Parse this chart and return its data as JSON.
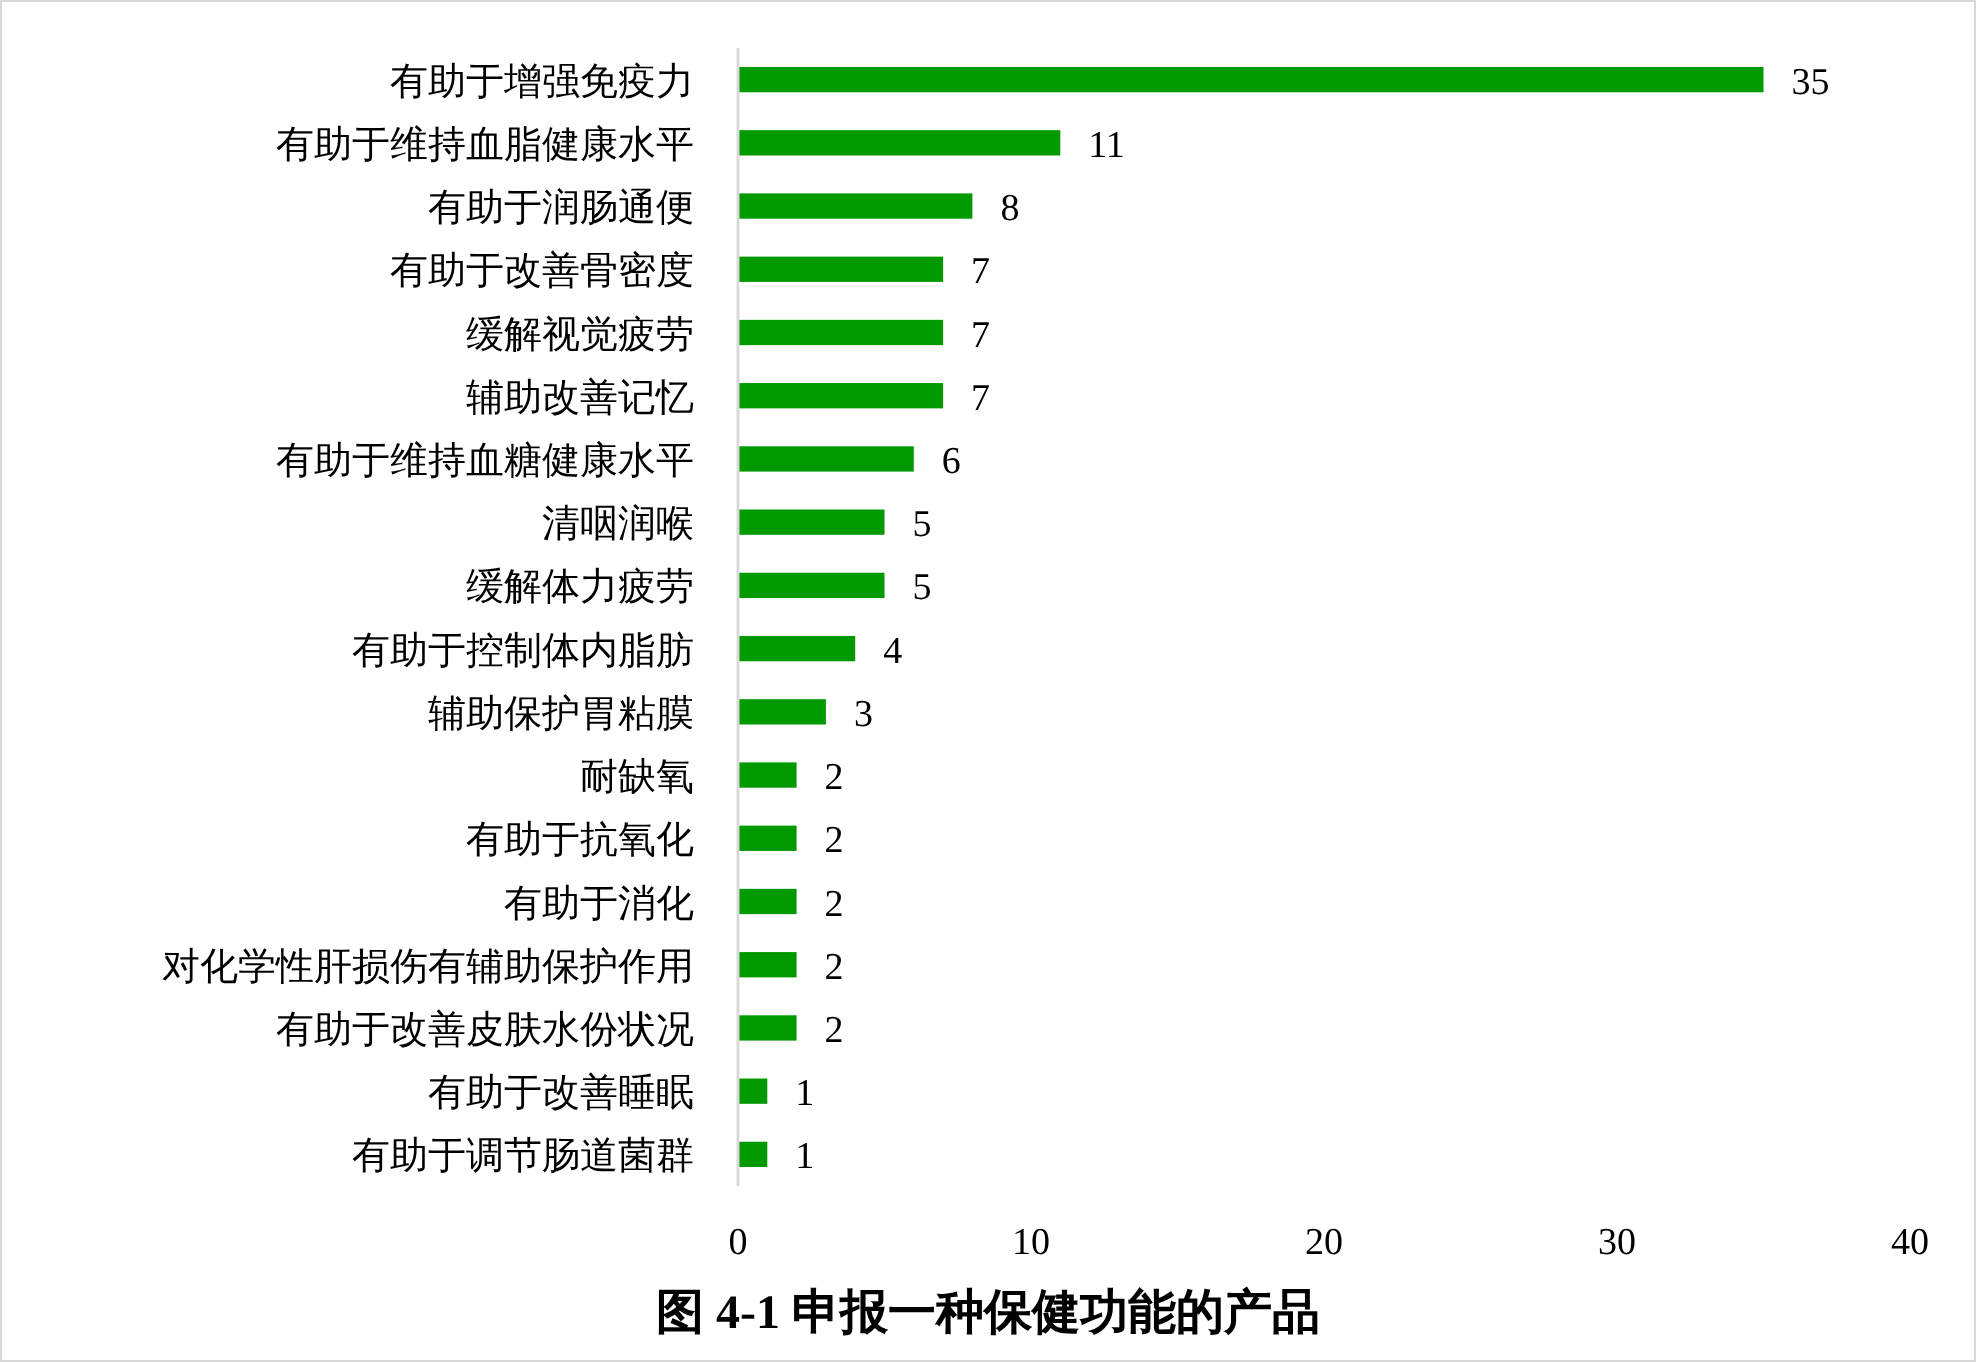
{
  "chart_data": {
    "type": "bar",
    "orientation": "horizontal",
    "title": "图 4-1 申报一种保健功能的产品",
    "categories": [
      "有助于增强免疫力",
      "有助于维持血脂健康水平",
      "有助于润肠通便",
      "有助于改善骨密度",
      "缓解视觉疲劳",
      "辅助改善记忆",
      "有助于维持血糖健康水平",
      "清咽润喉",
      "缓解体力疲劳",
      "有助于控制体内脂肪",
      "辅助保护胃粘膜",
      "耐缺氧",
      "有助于抗氧化",
      "有助于消化",
      "对化学性肝损伤有辅助保护作用",
      "有助于改善皮肤水份状况",
      "有助于改善睡眠",
      "有助于调节肠道菌群"
    ],
    "values": [
      35,
      11,
      8,
      7,
      7,
      7,
      6,
      5,
      5,
      4,
      3,
      2,
      2,
      2,
      2,
      2,
      1,
      1
    ],
    "color": "#009900",
    "xlim": [
      0,
      40
    ],
    "xticks": [
      0,
      10,
      20,
      30,
      40
    ],
    "data_labels": true
  }
}
